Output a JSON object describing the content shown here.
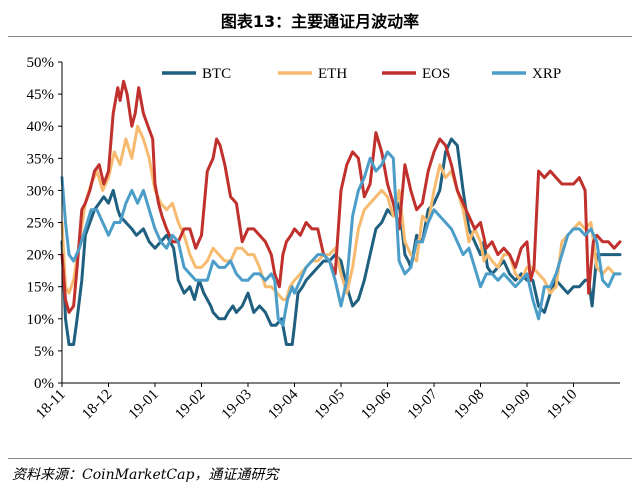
{
  "figure_title": "图表13：主要通证月波动率",
  "source_note": "资料来源：CoinMarketCap，通证通研究",
  "chart_data": {
    "type": "line",
    "title": "",
    "xlabel": "",
    "ylabel": "",
    "ylim": [
      0,
      50
    ],
    "yticks": [
      "0%",
      "5%",
      "10%",
      "15%",
      "20%",
      "25%",
      "30%",
      "35%",
      "40%",
      "45%",
      "50%"
    ],
    "xticks": [
      "18-11",
      "18-12",
      "19-01",
      "19-02",
      "19-03",
      "19-04",
      "19-05",
      "19-06",
      "19-07",
      "19-08",
      "19-09",
      "19-10"
    ],
    "grid": false,
    "legend": "top",
    "series": [
      {
        "name": "BTC",
        "color": "#1f5f7f",
        "x": [
          0,
          0.3,
          0.6,
          1,
          1.3,
          1.7,
          2,
          2.4,
          2.8,
          3.2,
          3.6,
          4,
          4.4,
          4.8,
          5,
          5.5,
          6,
          6.4,
          7,
          7.5,
          8,
          8.5,
          9,
          9.6,
          10,
          10.5,
          11,
          11.4,
          11.8,
          12.2,
          12.8,
          13,
          13.5,
          14,
          14.3,
          14.7,
          15,
          15.5,
          16,
          16.5,
          17,
          17.5,
          18,
          18.4,
          18.9,
          19.3,
          19.8,
          20,
          20.3,
          20.7,
          21,
          21.5,
          22,
          22.5,
          23,
          23.5,
          24,
          24.5,
          25,
          25.5,
          26,
          26.5,
          27,
          27.5,
          28,
          28.5,
          29,
          29.5,
          29.8,
          30,
          30.5,
          31,
          31.5,
          32,
          32.5,
          33,
          33.5,
          34,
          34.5,
          35,
          35.5,
          36,
          36.3,
          36.6,
          37,
          37.5,
          38,
          38.5,
          39,
          39.5,
          40,
          40.5,
          41,
          41.5,
          42,
          42.5,
          43,
          43.5,
          44,
          44.5,
          45,
          45.3,
          45.6,
          46,
          46.5,
          47,
          47.5,
          48
        ],
        "values": [
          22,
          10,
          6,
          6,
          10,
          16,
          23,
          25,
          27,
          28,
          29,
          28,
          30,
          27,
          26,
          25,
          24,
          23,
          24,
          22,
          21,
          22,
          23,
          21,
          16,
          14,
          15,
          13,
          16,
          14,
          12,
          11,
          10,
          10,
          11,
          12,
          11,
          12,
          14,
          11,
          12,
          11,
          9,
          9,
          10,
          6,
          6,
          9,
          14,
          15,
          16,
          17,
          18,
          19,
          19,
          20,
          19,
          15,
          12,
          13,
          16,
          20,
          24,
          25,
          27,
          26,
          28,
          20,
          19,
          18,
          23,
          22,
          27,
          28,
          30,
          36,
          38,
          37,
          30,
          24,
          22,
          20,
          22,
          18,
          17,
          18,
          19,
          17,
          16,
          17,
          16,
          16,
          12,
          11,
          14,
          16,
          15,
          14,
          15,
          15,
          16,
          16,
          12,
          20,
          20,
          20,
          20,
          20
        ]
      },
      {
        "name": "ETH",
        "color": "#f7bb70",
        "x": [
          0,
          0.3,
          0.6,
          1,
          1.5,
          2,
          2.5,
          3,
          3.5,
          4,
          4.5,
          5,
          5.5,
          6,
          6.5,
          7,
          7.5,
          8,
          8.5,
          9,
          9.5,
          10,
          10.5,
          11,
          11.5,
          12,
          12.5,
          13,
          13.5,
          14,
          14.5,
          15,
          15.5,
          16,
          16.5,
          17,
          17.5,
          18,
          18.5,
          19,
          19.3,
          19.6,
          20,
          20.5,
          21,
          21.5,
          22,
          22.5,
          23,
          23.5,
          24,
          24.5,
          25,
          25.5,
          26,
          26.5,
          27,
          27.5,
          28,
          28.5,
          29,
          29.5,
          30,
          30.5,
          31,
          31.5,
          32,
          32.5,
          33,
          33.5,
          34,
          34.5,
          35,
          35.5,
          36,
          36.3,
          36.6,
          37,
          37.5,
          38,
          38.5,
          39,
          39.5,
          40,
          40.5,
          41,
          41.5,
          42,
          42.5,
          43,
          43.5,
          44,
          44.5,
          45,
          45.5,
          46,
          46.5,
          47,
          47.5,
          48
        ],
        "values": [
          25,
          15,
          14,
          16,
          22,
          28,
          31,
          33,
          30,
          32,
          36,
          34,
          38,
          35,
          40,
          38,
          35,
          30,
          28,
          27,
          28,
          25,
          23,
          20,
          18,
          18,
          19,
          21,
          20,
          19,
          19,
          21,
          21,
          20,
          20,
          18,
          15,
          15,
          14,
          13,
          13,
          15,
          16,
          17,
          18,
          19,
          19,
          20,
          20,
          21,
          17,
          14,
          18,
          24,
          27,
          28,
          29,
          30,
          29,
          26,
          30,
          22,
          20,
          19,
          26,
          25,
          30,
          34,
          32,
          33,
          30,
          27,
          22,
          24,
          22,
          19,
          20,
          19,
          18,
          20,
          20,
          17,
          16,
          18,
          18,
          17,
          16,
          14,
          15,
          22,
          23,
          24,
          25,
          24,
          25,
          18,
          17,
          18,
          17,
          17
        ]
      },
      {
        "name": "EOS",
        "color": "#c0302c",
        "x": [
          0,
          0.3,
          0.6,
          1,
          1.3,
          1.7,
          2,
          2.4,
          2.8,
          3.2,
          3.6,
          4,
          4.4,
          4.8,
          5,
          5.3,
          5.6,
          6,
          6.3,
          6.6,
          7,
          7.4,
          7.8,
          8,
          8.3,
          8.6,
          9,
          9.5,
          10,
          10.5,
          11,
          11.5,
          12,
          12.5,
          13,
          13.3,
          13.6,
          14,
          14.5,
          15,
          15.5,
          16,
          16.5,
          17,
          17.5,
          18,
          18.3,
          18.7,
          19,
          19.3,
          19.7,
          20,
          20.5,
          21,
          21.5,
          22,
          22.5,
          23,
          23.5,
          24,
          24.5,
          25,
          25.5,
          26,
          26.5,
          27,
          27.5,
          28,
          28.5,
          29,
          29.5,
          30,
          30.5,
          31,
          31.5,
          32,
          32.5,
          33,
          33.5,
          34,
          34.5,
          35,
          35.5,
          36,
          36.5,
          37,
          37.5,
          38,
          38.5,
          39,
          39.5,
          40,
          40.3,
          40.6,
          41,
          41.5,
          42,
          42.5,
          43,
          43.5,
          44,
          44.5,
          45,
          45.3,
          45.7,
          46,
          46.5,
          47,
          47.5,
          48
        ],
        "values": [
          20,
          13,
          11,
          12,
          18,
          27,
          28,
          30,
          33,
          34,
          31,
          33,
          42,
          46,
          44,
          47,
          45,
          40,
          42,
          46,
          42,
          40,
          38,
          31,
          28,
          26,
          24,
          22,
          22,
          24,
          24,
          21,
          23,
          33,
          35,
          38,
          37,
          34,
          29,
          28,
          22,
          24,
          24,
          23,
          22,
          20,
          17,
          15,
          20,
          22,
          23,
          24,
          23,
          25,
          24,
          24,
          20,
          19,
          17,
          30,
          34,
          36,
          35,
          29,
          31,
          39,
          36,
          31,
          28,
          24,
          34,
          30,
          27,
          28,
          33,
          36,
          38,
          37,
          34,
          30,
          28,
          26,
          24,
          25,
          21,
          22,
          20,
          21,
          20,
          18,
          21,
          22,
          16,
          18,
          33,
          32,
          33,
          32,
          31,
          31,
          31,
          32,
          30,
          14,
          22,
          23,
          22,
          22,
          21,
          22
        ]
      },
      {
        "name": "XRP",
        "color": "#4c9ec8",
        "x": [
          0,
          0.3,
          0.6,
          1,
          1.5,
          2,
          2.5,
          3,
          3.5,
          4,
          4.5,
          5,
          5.5,
          6,
          6.5,
          7,
          7.5,
          8,
          8.5,
          9,
          9.5,
          10,
          10.5,
          11,
          11.5,
          12,
          12.5,
          13,
          13.5,
          14,
          14.5,
          15,
          15.5,
          16,
          16.5,
          17,
          17.5,
          18,
          18.3,
          18.6,
          19,
          19.4,
          19.8,
          20,
          20.5,
          21,
          21.5,
          22,
          22.5,
          23,
          23.5,
          24,
          24.5,
          25,
          25.5,
          26,
          26.5,
          27,
          27.5,
          28,
          28.5,
          29,
          29.5,
          30,
          30.5,
          31,
          31.5,
          32,
          32.5,
          33,
          33.5,
          34,
          34.5,
          35,
          35.5,
          36,
          36.5,
          37,
          37.5,
          38,
          38.5,
          39,
          39.5,
          40,
          40.5,
          41,
          41.5,
          42,
          42.5,
          43,
          43.5,
          44,
          44.5,
          45,
          45.5,
          46,
          46.5,
          47,
          47.5,
          48
        ],
        "values": [
          32,
          25,
          20,
          19,
          21,
          24,
          27,
          27,
          25,
          23,
          25,
          25,
          28,
          30,
          28,
          30,
          27,
          24,
          22,
          21,
          23,
          22,
          18,
          17,
          16,
          16,
          16,
          19,
          18,
          18,
          19,
          17,
          16,
          16,
          17,
          17,
          16,
          17,
          16,
          10,
          9,
          13,
          15,
          14,
          16,
          18,
          19,
          20,
          20,
          19,
          16,
          12,
          16,
          26,
          30,
          32,
          35,
          33,
          34,
          36,
          35,
          19,
          17,
          18,
          22,
          22,
          25,
          27,
          26,
          25,
          24,
          22,
          20,
          21,
          18,
          15,
          17,
          17,
          16,
          17,
          16,
          15,
          16,
          17,
          13,
          10,
          15,
          15,
          17,
          20,
          23,
          24,
          24,
          23,
          24,
          22,
          16,
          15,
          17,
          17
        ]
      }
    ]
  }
}
